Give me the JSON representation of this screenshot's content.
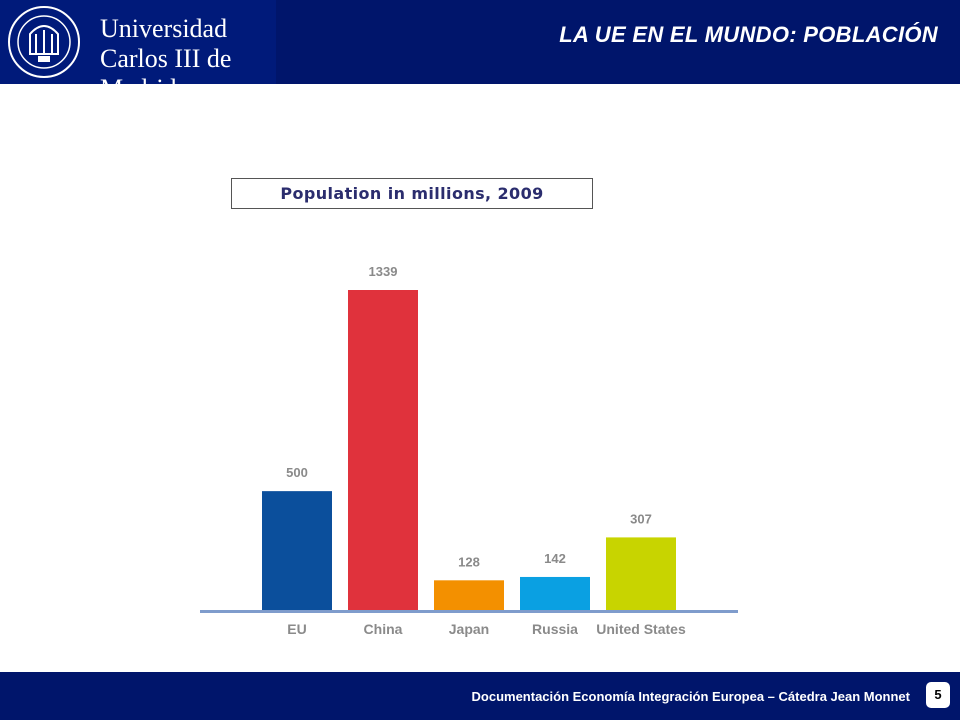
{
  "header": {
    "university_line1": "Universidad",
    "university_line2": "Carlos III de Madrid",
    "slide_title": "LA UE EN EL MUNDO: POBLACIÓN"
  },
  "chart_data": {
    "type": "bar",
    "title": "Population in millions, 2009",
    "categories": [
      "EU",
      "China",
      "Japan",
      "Russia",
      "United States"
    ],
    "values": [
      500,
      1339,
      128,
      142,
      307
    ],
    "colors": [
      "#0b4f9c",
      "#e0323c",
      "#f39000",
      "#0aa0e2",
      "#c8d400"
    ],
    "axis_color": "#7f9ccc",
    "label_color": "#8a8a8a",
    "ylim": [
      0,
      1339
    ],
    "grid": false
  },
  "footer": {
    "text": "Documentación Economía Integración Europea – Cátedra Jean Monnet",
    "page_number": "5"
  }
}
